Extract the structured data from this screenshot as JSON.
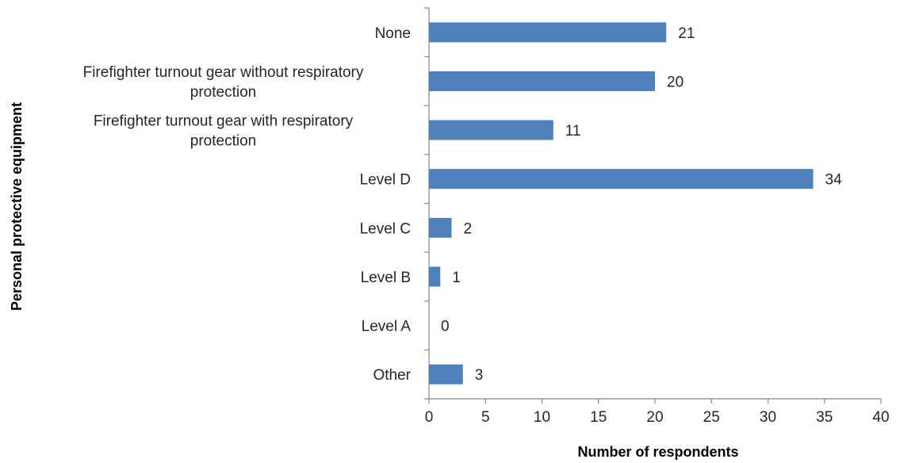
{
  "chart_data": {
    "type": "bar",
    "orientation": "horizontal",
    "categories": [
      [
        "None"
      ],
      [
        "Firefighter turnout gear without respiratory",
        "protection"
      ],
      [
        "Firefighter turnout gear with respiratory",
        "protection"
      ],
      [
        "Level D"
      ],
      [
        "Level C"
      ],
      [
        "Level B"
      ],
      [
        "Level A"
      ],
      [
        "Other"
      ]
    ],
    "values": [
      21,
      20,
      11,
      34,
      2,
      1,
      0,
      3
    ],
    "data_labels": [
      "21",
      "20",
      "11",
      "34",
      "2",
      "1",
      "0",
      "3"
    ],
    "xlabel": "Number of respondents",
    "ylabel": "Personal protective equipment",
    "xlim": [
      0,
      40
    ],
    "xticks": [
      0,
      5,
      10,
      15,
      20,
      25,
      30,
      35,
      40
    ],
    "grid": false,
    "legend": "none",
    "bar_color": "#4F81BD",
    "axis_color": "#868686"
  }
}
